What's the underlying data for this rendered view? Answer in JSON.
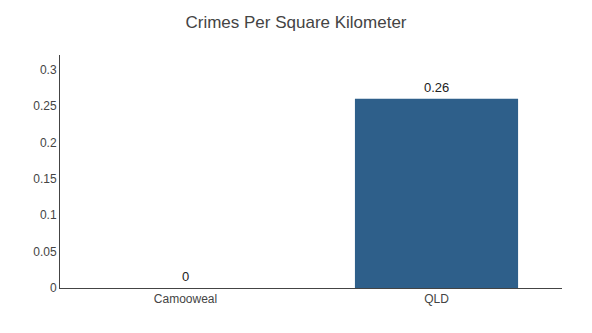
{
  "chart_data": {
    "type": "bar",
    "title": "Crimes Per Square Kilometer",
    "categories": [
      "Camooweal",
      "QLD"
    ],
    "values": [
      0,
      0.26
    ],
    "color": "#2e5f8a",
    "ylim": [
      0,
      0.32
    ],
    "yticks": [
      0,
      0.05,
      0.1,
      0.15,
      0.2,
      0.25,
      0.3
    ],
    "grid": false,
    "data_labels": true
  }
}
